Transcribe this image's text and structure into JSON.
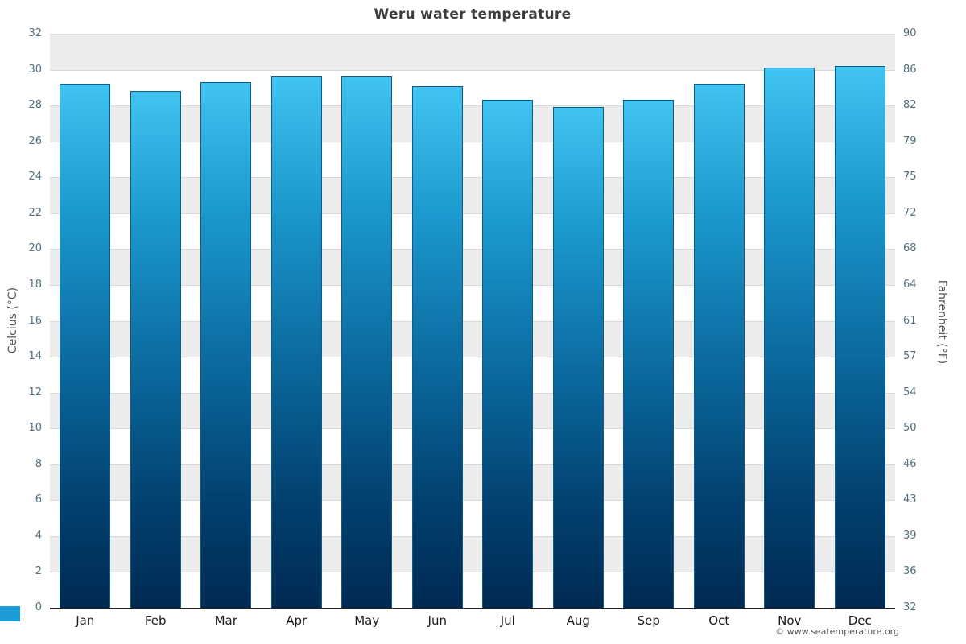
{
  "title": "Weru water temperature",
  "footer": "© www.seatemperature.org",
  "chart_data": {
    "type": "bar",
    "title": "Weru water temperature",
    "categories": [
      "Jan",
      "Feb",
      "Mar",
      "Apr",
      "May",
      "Jun",
      "Jul",
      "Aug",
      "Sep",
      "Oct",
      "Nov",
      "Dec"
    ],
    "values": [
      29.2,
      28.8,
      29.3,
      29.6,
      29.6,
      29.1,
      28.3,
      27.9,
      28.3,
      29.2,
      30.1,
      30.2
    ],
    "ylabel_left": "Celcius (°C)",
    "ylabel_right": "Fahrenheit (°F)",
    "ylim": [
      0,
      32
    ],
    "ytick_step": 2,
    "yticks_left": [
      "0",
      "2",
      "4",
      "6",
      "8",
      "10",
      "12",
      "14",
      "16",
      "18",
      "20",
      "22",
      "24",
      "26",
      "28",
      "30",
      "32"
    ],
    "yticks_right": [
      "32",
      "36",
      "39",
      "43",
      "46",
      "50",
      "54",
      "57",
      "61",
      "64",
      "68",
      "72",
      "75",
      "79",
      "82",
      "86",
      "90"
    ],
    "grid": true,
    "legend": "none",
    "colors": {
      "bar_top": "#41c4f1",
      "bar_bottom": "#002a52",
      "band_gray": "#ececec",
      "band_white": "#ffffff",
      "gridline": "#d9d9d9",
      "axis_line": "#222222",
      "tick_text": "#50707f",
      "title_text": "#3c3c3c"
    }
  }
}
